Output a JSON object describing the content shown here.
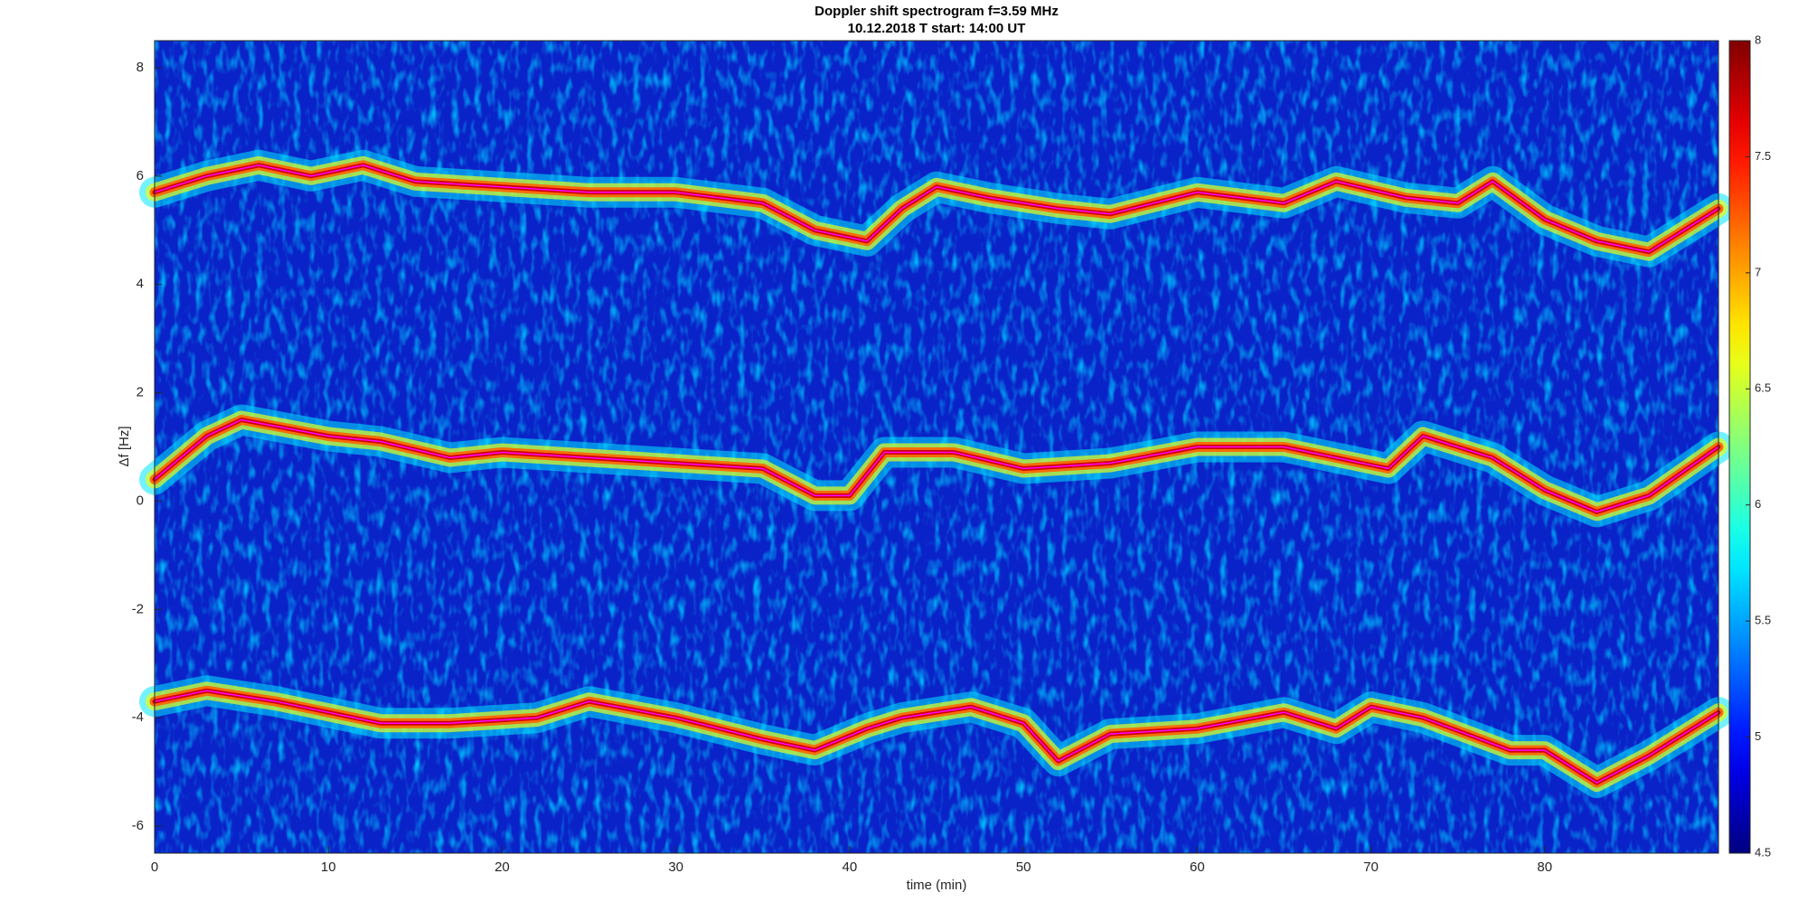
{
  "chart_data": {
    "type": "spectrogram",
    "title": "Doppler shift spectrogram f=3.59 MHz",
    "subtitle": "10.12.2018   T start: 14:00 UT",
    "xlabel": "time (min)",
    "ylabel": "Δf [Hz]",
    "xlim": [
      0,
      90
    ],
    "ylim": [
      -6.5,
      8.5
    ],
    "xticks": [
      0,
      10,
      20,
      30,
      40,
      50,
      60,
      70,
      80
    ],
    "yticks": [
      -6,
      -4,
      -2,
      0,
      2,
      4,
      6,
      8
    ],
    "colormap": "jet",
    "clim": [
      4.5,
      8
    ],
    "cticks": [
      4.5,
      5,
      5.5,
      6,
      6.5,
      7,
      7.5,
      8
    ],
    "series": [
      {
        "color": "#ff00ff",
        "x": [
          0,
          3,
          6,
          9,
          12,
          15,
          20,
          25,
          30,
          35,
          38,
          41,
          43,
          45,
          48,
          52,
          55,
          60,
          65,
          68,
          72,
          75,
          77,
          80,
          83,
          86,
          88,
          90
        ],
        "values": [
          5.7,
          6.0,
          6.2,
          6.0,
          6.2,
          5.9,
          5.8,
          5.7,
          5.7,
          5.5,
          5.0,
          4.8,
          5.4,
          5.8,
          5.6,
          5.4,
          5.3,
          5.7,
          5.5,
          5.9,
          5.6,
          5.5,
          5.9,
          5.2,
          4.8,
          4.6,
          5.0,
          5.4
        ]
      },
      {
        "color": "#ff00ff",
        "x": [
          0,
          3,
          5,
          10,
          13,
          17,
          20,
          25,
          30,
          35,
          38,
          40,
          42,
          46,
          50,
          55,
          60,
          65,
          68,
          71,
          73,
          77,
          80,
          83,
          86,
          90
        ],
        "values": [
          0.4,
          1.2,
          1.5,
          1.2,
          1.1,
          0.8,
          0.9,
          0.8,
          0.7,
          0.6,
          0.1,
          0.1,
          0.9,
          0.9,
          0.6,
          0.7,
          1.0,
          1.0,
          0.8,
          0.6,
          1.2,
          0.8,
          0.2,
          -0.2,
          0.1,
          1.0
        ]
      },
      {
        "color": "#ff00ff",
        "x": [
          0,
          3,
          7,
          10,
          13,
          17,
          22,
          25,
          30,
          35,
          38,
          41,
          43,
          47,
          50,
          52,
          55,
          60,
          65,
          68,
          70,
          73,
          78,
          80,
          83,
          86,
          90
        ],
        "values": [
          -3.7,
          -3.5,
          -3.7,
          -3.9,
          -4.1,
          -4.1,
          -4.0,
          -3.7,
          -4.0,
          -4.4,
          -4.6,
          -4.2,
          -4.0,
          -3.8,
          -4.1,
          -4.8,
          -4.3,
          -4.2,
          -3.9,
          -4.2,
          -3.8,
          -4.0,
          -4.6,
          -4.6,
          -5.2,
          -4.7,
          -3.9
        ]
      }
    ]
  }
}
